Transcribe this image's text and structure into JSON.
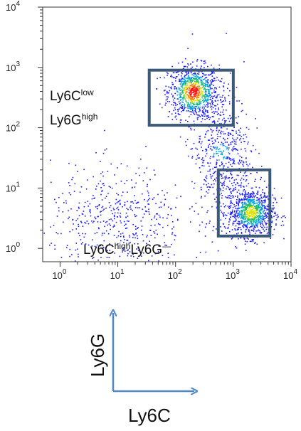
{
  "chart_data": {
    "type": "scatter",
    "subtype": "flow-cytometry-density-dot-plot",
    "x_scale": "log",
    "y_scale": "log",
    "xlim": [
      0.5,
      10000
    ],
    "ylim": [
      0.6,
      10000
    ],
    "x_ticks": [
      1,
      10,
      100,
      1000,
      10000
    ],
    "y_ticks": [
      1,
      10,
      100,
      1000,
      10000
    ],
    "tick_base": "10",
    "x_tick_exponents": [
      "0",
      "1",
      "2",
      "3",
      "4"
    ],
    "y_tick_exponents": [
      "0",
      "1",
      "2",
      "3",
      "4"
    ],
    "populations": [
      {
        "center_x": 200,
        "center_y": 400,
        "spread_log": 0.22,
        "density": "high"
      },
      {
        "center_x": 2000,
        "center_y": 4,
        "spread_log": 0.2,
        "density": "high"
      },
      {
        "center_x": 600,
        "center_y": 40,
        "spread_log": 0.25,
        "density": "medium"
      },
      {
        "center_x": 10,
        "center_y": 3,
        "spread_log": 0.45,
        "density": "low"
      }
    ],
    "gates": [
      {
        "x_range": [
          35,
          1000
        ],
        "y_range": [
          110,
          900
        ],
        "label_parts": [
          "Ly6C",
          "low",
          "Ly6G",
          "high"
        ]
      },
      {
        "x_range": [
          550,
          4300
        ],
        "y_range": [
          1.6,
          20
        ],
        "label_parts": [
          "Ly6C",
          "high",
          "Ly6G",
          "—"
        ]
      }
    ],
    "gate_color": "#3c5a78",
    "density_colors": [
      "#1a1aff",
      "#00a0e0",
      "#20c060",
      "#e0e000",
      "#ff8000",
      "#ff1010"
    ]
  },
  "axis_key": {
    "x_label": "Ly6C",
    "y_label": "Ly6G",
    "arrow_color": "#4f86c6"
  }
}
